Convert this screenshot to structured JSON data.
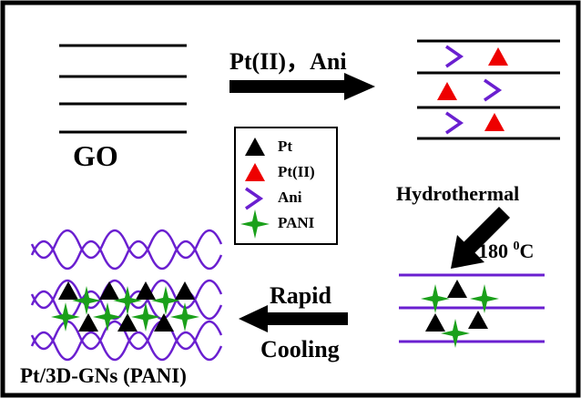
{
  "steps": {
    "start": {
      "label": "GO"
    },
    "reagents": {
      "label": "Pt(II)，Ani"
    },
    "hydrothermal": {
      "label": "Hydrothermal",
      "temperature": {
        "number": "180",
        "superscript": "0",
        "unit": "C"
      }
    },
    "cooling": {
      "line1": "Rapid",
      "line2": "Cooling"
    },
    "product": {
      "label": "Pt/3D-GNs (PANI)"
    }
  },
  "legend": {
    "items": [
      {
        "label": "Pt"
      },
      {
        "label": "Pt(II)"
      },
      {
        "label": "Ani"
      },
      {
        "label": "PANI"
      }
    ]
  }
}
